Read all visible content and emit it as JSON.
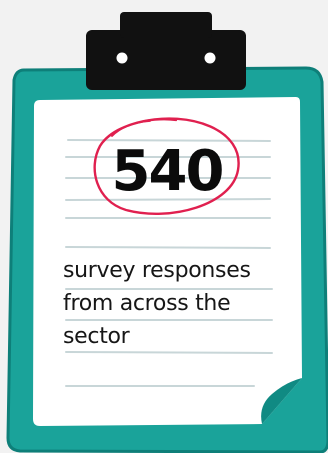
{
  "stat": {
    "value": "540",
    "caption": "survey responses from across the sector"
  },
  "colors": {
    "board": "#1aa39a",
    "board_edge": "#0e7f79",
    "paper": "#ffffff",
    "clip": "#111111",
    "circle_marker": "#e0204f",
    "ruled_lines": "#c8d6d8",
    "background": "#f2f2f2"
  },
  "icons": {
    "clip": "clipboard-clip-icon",
    "circle": "hand-drawn-circle-icon"
  }
}
